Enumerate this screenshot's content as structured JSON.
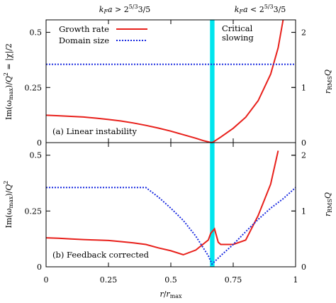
{
  "chart_data": [
    {
      "type": "line",
      "panel_label": "(a) Linear instability",
      "xlim": [
        0,
        1
      ],
      "ylim": [
        0,
        0.55
      ],
      "y2lim": [
        0,
        2.2
      ],
      "yticks": [
        "0",
        "0.25",
        "0.5"
      ],
      "y2ticks": [
        "0",
        "1",
        "2"
      ],
      "ylabel": "Im(ωmax)/Q² = |χ|/2",
      "y2label": "rRMSQ",
      "top_label_left": "kFa > 2^(5/3) 3/5",
      "top_label_right": "kFa < 2^(5/3) 3/5",
      "critical_band": {
        "x": [
          0.657,
          0.675
        ],
        "color": "#00e5ee"
      },
      "annotation": [
        "Critical",
        "slowing"
      ],
      "legend": {
        "position": "top-left",
        "entries": [
          "Growth rate",
          "Domain size"
        ]
      },
      "series": [
        {
          "name": "Growth rate",
          "axis": "left",
          "style": "solid",
          "color": "#e8201b",
          "x": [
            0,
            0.05,
            0.1,
            0.15,
            0.2,
            0.25,
            0.3,
            0.35,
            0.4,
            0.45,
            0.5,
            0.55,
            0.6,
            0.63,
            0.655,
            0.665,
            0.67,
            0.7,
            0.75,
            0.8,
            0.85,
            0.9,
            0.93,
            0.95
          ],
          "y": [
            0.124,
            0.122,
            0.119,
            0.116,
            0.111,
            0.105,
            0.098,
            0.089,
            0.078,
            0.066,
            0.052,
            0.036,
            0.02,
            0.009,
            0.002,
            0,
            0.003,
            0.025,
            0.065,
            0.115,
            0.19,
            0.31,
            0.43,
            0.56
          ]
        },
        {
          "name": "Domain size",
          "axis": "right",
          "style": "dotted",
          "color": "#1a2be0",
          "x": [
            0,
            1
          ],
          "y": [
            1.42,
            1.42
          ]
        }
      ]
    },
    {
      "type": "line",
      "panel_label": "(b) Feedback corrected",
      "xlim": [
        0,
        1
      ],
      "ylim": [
        0,
        0.55
      ],
      "y2lim": [
        0,
        2.2
      ],
      "yticks": [
        "0",
        "0.25",
        "0.5"
      ],
      "y2ticks": [
        "0",
        "1",
        "2"
      ],
      "xticks": [
        "0",
        "0.25",
        "0.5",
        "0.75",
        "1"
      ],
      "ylabel": "Im(ωmax)/Q²",
      "y2label": "rRMSQ",
      "xlabel": "r/rmax",
      "critical_band": {
        "x": [
          0.657,
          0.675
        ],
        "color": "#00e5ee"
      },
      "series": [
        {
          "name": "Growth rate",
          "axis": "left",
          "style": "solid",
          "color": "#e8201b",
          "x": [
            0,
            0.05,
            0.1,
            0.15,
            0.2,
            0.25,
            0.3,
            0.35,
            0.4,
            0.45,
            0.5,
            0.55,
            0.6,
            0.65,
            0.66,
            0.675,
            0.69,
            0.7,
            0.75,
            0.8,
            0.85,
            0.9,
            0.93
          ],
          "y": [
            0.13,
            0.128,
            0.125,
            0.122,
            0.12,
            0.118,
            0.113,
            0.107,
            0.1,
            0.085,
            0.072,
            0.054,
            0.075,
            0.12,
            0.15,
            0.17,
            0.11,
            0.1,
            0.1,
            0.12,
            0.23,
            0.37,
            0.52
          ]
        },
        {
          "name": "Domain size",
          "axis": "right",
          "style": "dotted",
          "color": "#1a2be0",
          "x": [
            0,
            0.1,
            0.2,
            0.3,
            0.4,
            0.45,
            0.5,
            0.55,
            0.6,
            0.65,
            0.665,
            0.7,
            0.75,
            0.8,
            0.85,
            0.9,
            0.95,
            1
          ],
          "y": [
            1.42,
            1.42,
            1.42,
            1.42,
            1.42,
            1.25,
            1.05,
            0.83,
            0.55,
            0.2,
            0.05,
            0.2,
            0.4,
            0.63,
            0.85,
            1.05,
            1.22,
            1.42
          ]
        }
      ]
    }
  ]
}
